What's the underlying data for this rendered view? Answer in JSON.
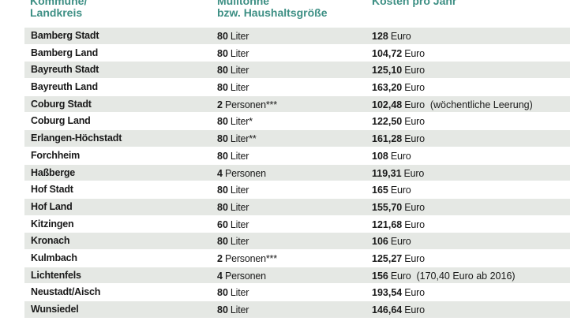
{
  "header": {
    "col1_line1": "Kommune/",
    "col1_line2": "Landkreis",
    "col2_line1": "Mülltonne",
    "col2_line2": "bzw. Haushaltsgröße",
    "col3": "Kosten pro Jahr"
  },
  "rows": [
    {
      "name": "Bamberg Stadt",
      "size_num": "80",
      "size_unit": "Liter",
      "cost": "128",
      "cost_unit": "Euro",
      "note": ""
    },
    {
      "name": "Bamberg Land",
      "size_num": "80",
      "size_unit": "Liter",
      "cost": "104,72",
      "cost_unit": "Euro",
      "note": ""
    },
    {
      "name": "Bayreuth Stadt",
      "size_num": "80",
      "size_unit": "Liter",
      "cost": "125,10",
      "cost_unit": "Euro",
      "note": ""
    },
    {
      "name": "Bayreuth Land",
      "size_num": "80",
      "size_unit": "Liter",
      "cost": "163,20",
      "cost_unit": "Euro",
      "note": ""
    },
    {
      "name": "Coburg Stadt",
      "size_num": "2",
      "size_unit": "Personen***",
      "cost": "102,48",
      "cost_unit": "Euro",
      "note": "(wöchentliche Leerung)"
    },
    {
      "name": "Coburg Land",
      "size_num": "80",
      "size_unit": "Liter*",
      "cost": "122,50",
      "cost_unit": "Euro",
      "note": ""
    },
    {
      "name": "Erlangen-Höchstadt",
      "size_num": "80",
      "size_unit": "Liter**",
      "cost": "161,28",
      "cost_unit": "Euro",
      "note": ""
    },
    {
      "name": "Forchheim",
      "size_num": "80",
      "size_unit": "Liter",
      "cost": "108",
      "cost_unit": "Euro",
      "note": ""
    },
    {
      "name": "Haßberge",
      "size_num": "4",
      "size_unit": "Personen",
      "cost": "119,31",
      "cost_unit": "Euro",
      "note": ""
    },
    {
      "name": "Hof Stadt",
      "size_num": "80",
      "size_unit": "Liter",
      "cost": "165",
      "cost_unit": "Euro",
      "note": ""
    },
    {
      "name": "Hof Land",
      "size_num": "80",
      "size_unit": "Liter",
      "cost": "155,70",
      "cost_unit": "Euro",
      "note": ""
    },
    {
      "name": "Kitzingen",
      "size_num": "60",
      "size_unit": "Liter",
      "cost": "121,68",
      "cost_unit": "Euro",
      "note": ""
    },
    {
      "name": "Kronach",
      "size_num": "80",
      "size_unit": "Liter",
      "cost": "106",
      "cost_unit": "Euro",
      "note": ""
    },
    {
      "name": "Kulmbach",
      "size_num": "2",
      "size_unit": "Personen***",
      "cost": "125,27",
      "cost_unit": "Euro",
      "note": ""
    },
    {
      "name": "Lichtenfels",
      "size_num": "4",
      "size_unit": "Personen",
      "cost": "156",
      "cost_unit": "Euro",
      "note": "(170,40 Euro ab 2016)"
    },
    {
      "name": "Neustadt/Aisch",
      "size_num": "80",
      "size_unit": "Liter",
      "cost": "193,54",
      "cost_unit": "Euro",
      "note": ""
    },
    {
      "name": "Wunsiedel",
      "size_num": "80",
      "size_unit": "Liter",
      "cost": "146,64",
      "cost_unit": "Euro",
      "note": ""
    }
  ]
}
